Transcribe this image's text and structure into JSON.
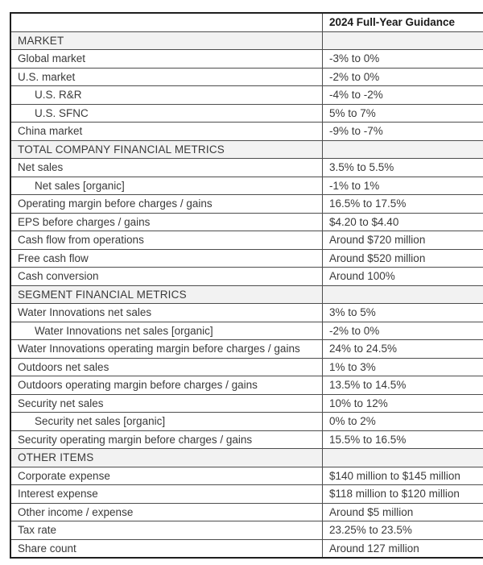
{
  "table": {
    "header": {
      "label": "",
      "guidance": "2024 Full-Year Guidance"
    },
    "rows": [
      {
        "type": "section",
        "label": "MARKET",
        "value": "",
        "indent": false
      },
      {
        "type": "data",
        "label": "Global market",
        "value": "-3% to 0%",
        "indent": false
      },
      {
        "type": "data",
        "label": "U.S. market",
        "value": "-2% to 0%",
        "indent": false
      },
      {
        "type": "data",
        "label": "U.S. R&R",
        "value": "-4% to -2%",
        "indent": true
      },
      {
        "type": "data",
        "label": "U.S. SFNC",
        "value": "5% to 7%",
        "indent": true
      },
      {
        "type": "data",
        "label": "China market",
        "value": "-9% to -7%",
        "indent": false
      },
      {
        "type": "section",
        "label": "TOTAL COMPANY FINANCIAL METRICS",
        "value": "",
        "indent": false
      },
      {
        "type": "data",
        "label": "Net sales",
        "value": "3.5% to 5.5%",
        "indent": false
      },
      {
        "type": "data",
        "label": "Net sales [organic]",
        "value": "-1% to 1%",
        "indent": true
      },
      {
        "type": "data",
        "label": "Operating margin before charges / gains",
        "value": "16.5% to 17.5%",
        "indent": false
      },
      {
        "type": "data",
        "label": "EPS before charges / gains",
        "value": "$4.20 to $4.40",
        "indent": false
      },
      {
        "type": "data",
        "label": "Cash flow from operations",
        "value": "Around $720 million",
        "indent": false
      },
      {
        "type": "data",
        "label": "Free cash flow",
        "value": "Around $520 million",
        "indent": false
      },
      {
        "type": "data",
        "label": "Cash conversion",
        "value": "Around 100%",
        "indent": false
      },
      {
        "type": "section",
        "label": "SEGMENT FINANCIAL METRICS",
        "value": "",
        "indent": false
      },
      {
        "type": "data",
        "label": "Water Innovations net sales",
        "value": "3% to 5%",
        "indent": false
      },
      {
        "type": "data",
        "label": "Water Innovations net sales [organic]",
        "value": "-2% to 0%",
        "indent": true
      },
      {
        "type": "data",
        "label": "Water Innovations operating margin before charges / gains",
        "value": "24% to 24.5%",
        "indent": false
      },
      {
        "type": "data",
        "label": "Outdoors net sales",
        "value": "1% to 3%",
        "indent": false
      },
      {
        "type": "data",
        "label": "Outdoors operating margin before charges / gains",
        "value": "13.5% to 14.5%",
        "indent": false
      },
      {
        "type": "data",
        "label": "Security net sales",
        "value": "10% to 12%",
        "indent": false
      },
      {
        "type": "data",
        "label": "Security net sales [organic]",
        "value": "0% to 2%",
        "indent": true
      },
      {
        "type": "data",
        "label": "Security operating margin before charges / gains",
        "value": "15.5% to 16.5%",
        "indent": false
      },
      {
        "type": "section",
        "label": "OTHER ITEMS",
        "value": "",
        "indent": false
      },
      {
        "type": "data",
        "label": "Corporate expense",
        "value": "$140 million to $145 million",
        "indent": false
      },
      {
        "type": "data",
        "label": "Interest expense",
        "value": "$118 million to $120 million",
        "indent": false
      },
      {
        "type": "data",
        "label": "Other income / expense",
        "value": "Around $5 million",
        "indent": false
      },
      {
        "type": "data",
        "label": "Tax rate",
        "value": "23.25% to 23.5%",
        "indent": false
      },
      {
        "type": "data",
        "label": "Share count",
        "value": "Around 127 million",
        "indent": false
      }
    ]
  },
  "colors": {
    "section_row_background": "#f2f2f2",
    "inner_border": "#4d4d4d",
    "outer_border": "#1f1f1f",
    "body_text": "#3a3a3a",
    "header_text": "#1a1a1a"
  }
}
